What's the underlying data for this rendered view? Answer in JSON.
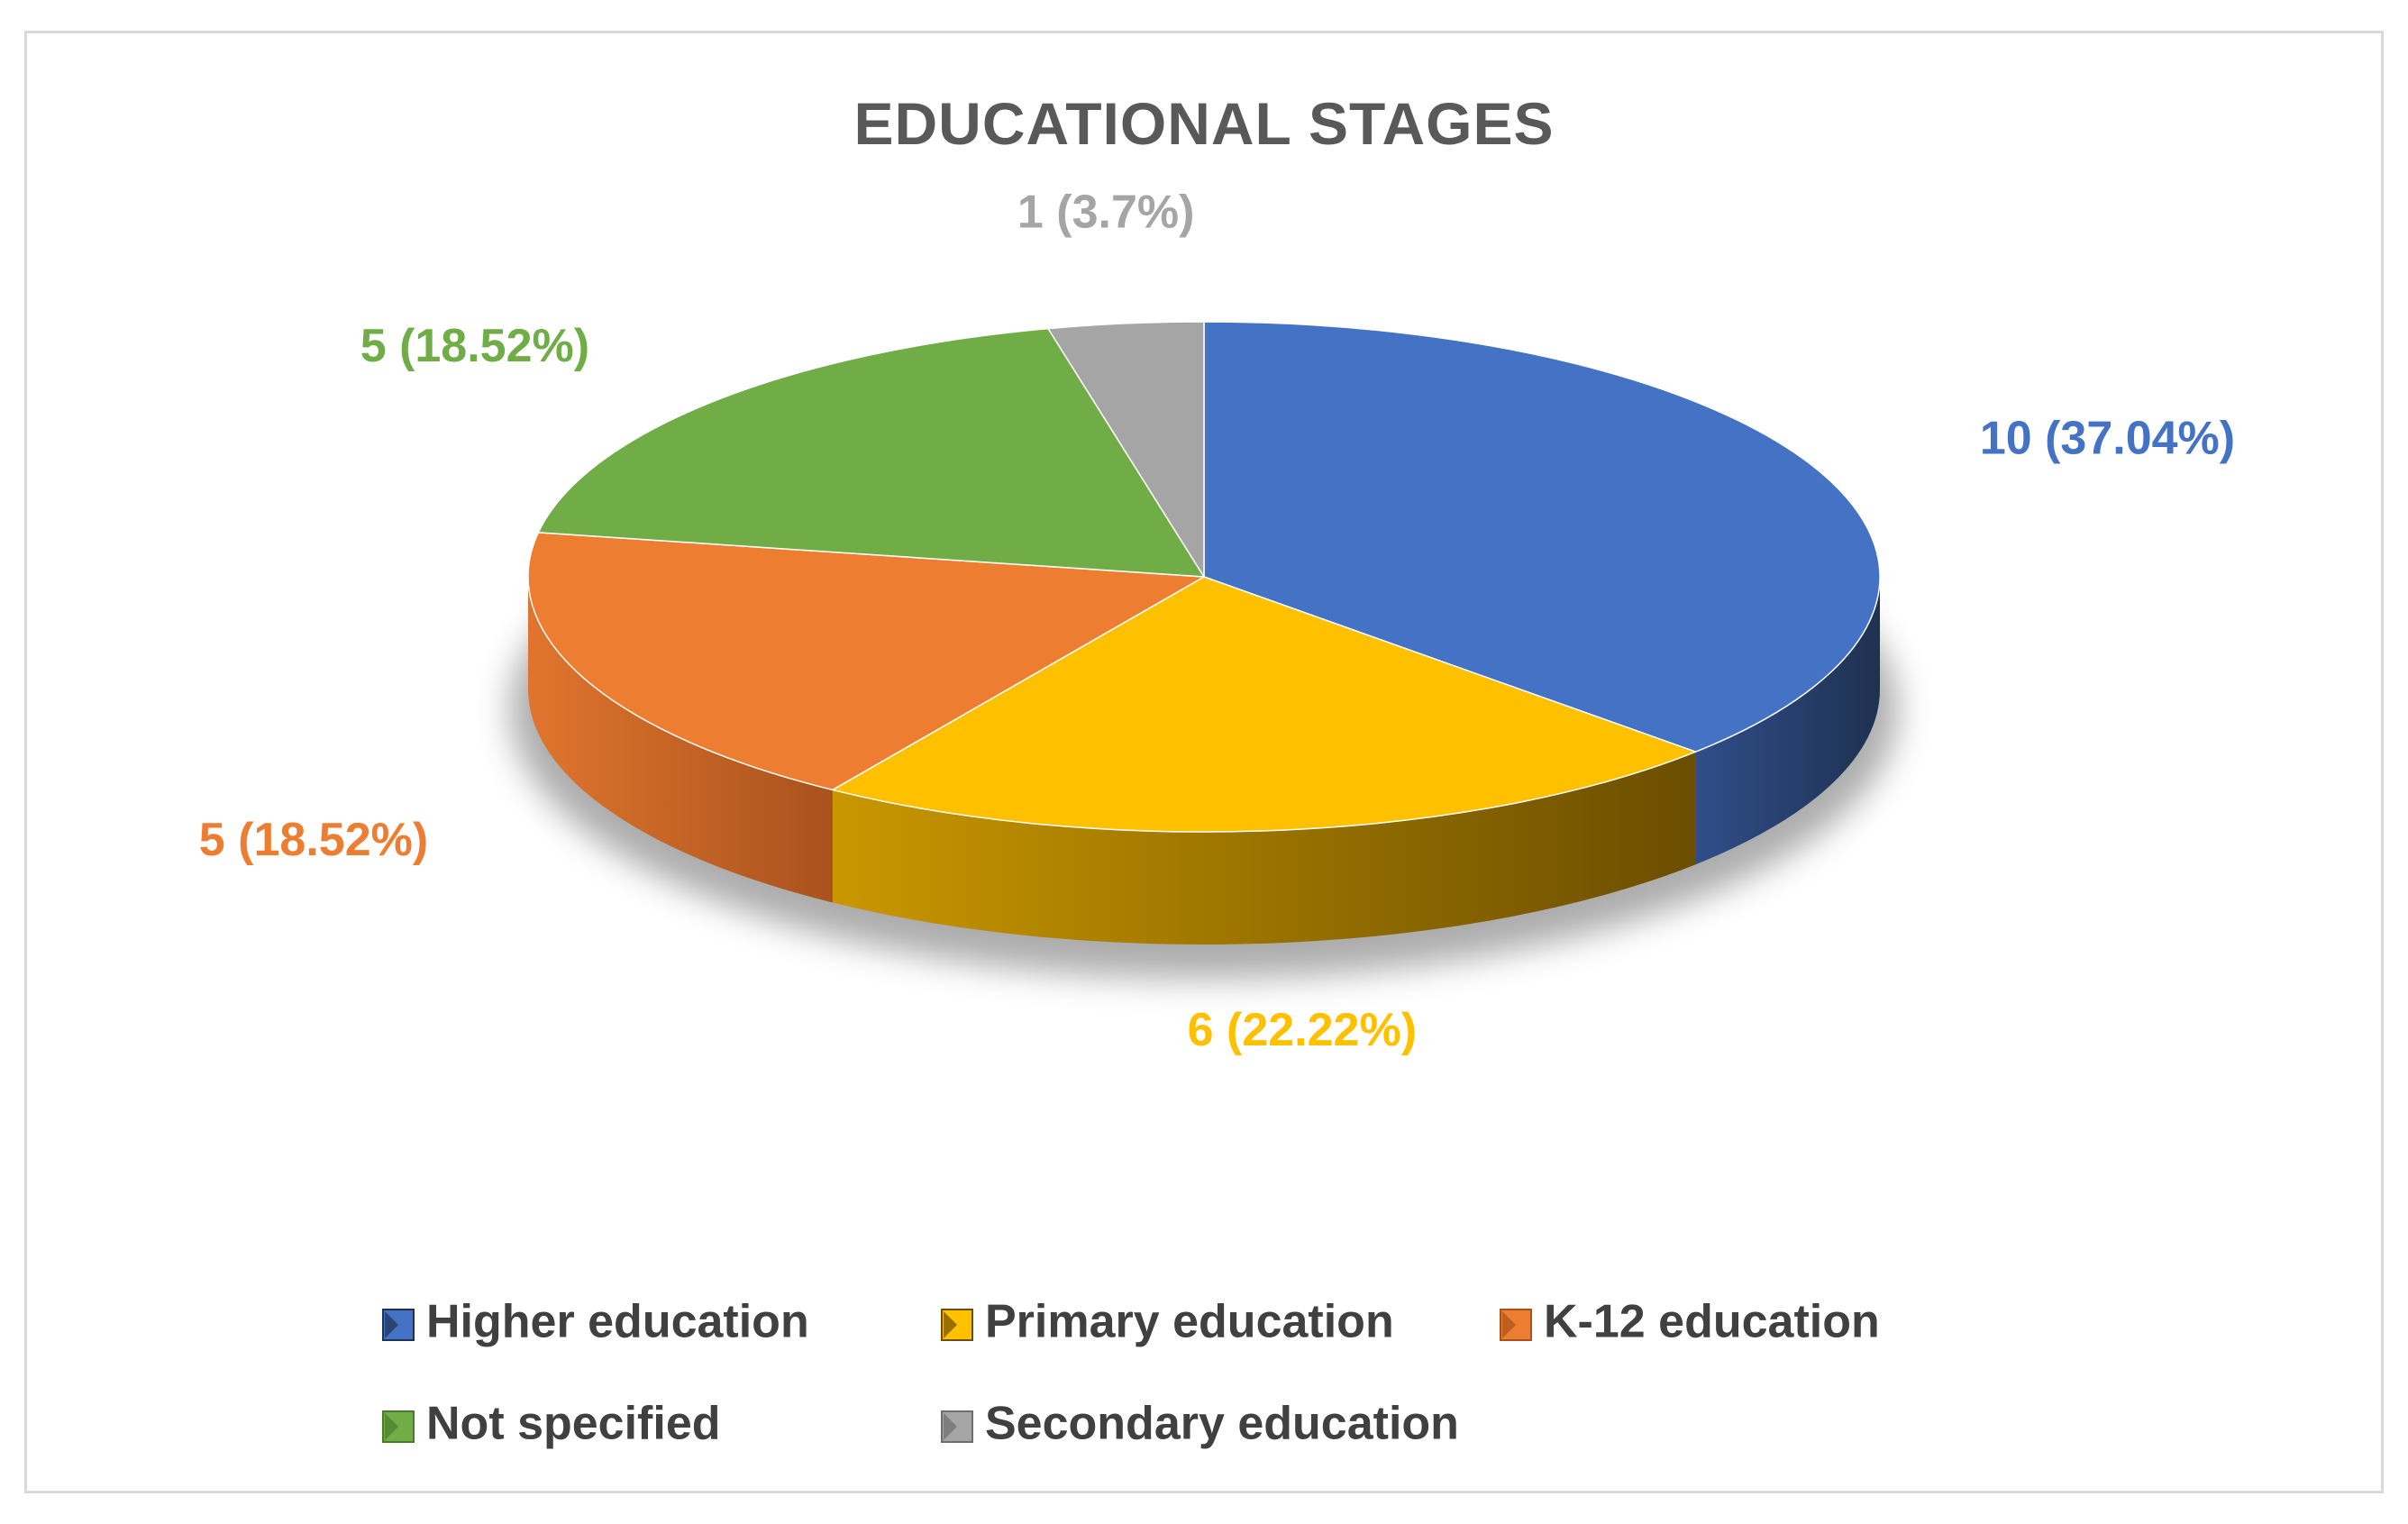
{
  "chart_data": {
    "type": "pie",
    "title": "EDUCATIONAL STAGES",
    "style": "3d-pie",
    "legend_position": "bottom",
    "slices": [
      {
        "name": "Higher education",
        "value": 10,
        "percent": 37.04,
        "label": "10 (37.04%)",
        "color": "#4472C4",
        "side_dark": "#1F3150",
        "side_light": "#2F4E8A"
      },
      {
        "name": "Primary education",
        "value": 6,
        "percent": 22.22,
        "label": "6 (22.22%)",
        "color": "#FFC000",
        "side_dark": "#6B4E00",
        "side_light": "#C99700"
      },
      {
        "name": "K-12 education",
        "value": 5,
        "percent": 18.52,
        "label": "5 (18.52%)",
        "color": "#ED7D31",
        "side_dark": "#A9521D",
        "side_light": "#E0752E"
      },
      {
        "name": "Not specified",
        "value": 5,
        "percent": 18.52,
        "label": "5 (18.52%)",
        "color": "#70AD47",
        "side_dark": "#4B7A2C",
        "side_light": "#5F9A3B"
      },
      {
        "name": "Secondary education",
        "value": 1,
        "percent": 3.7,
        "label": "1 (3.7%)",
        "color": "#A5A5A5",
        "side_dark": "#6E6E6E",
        "side_light": "#8C8C8C"
      }
    ]
  }
}
